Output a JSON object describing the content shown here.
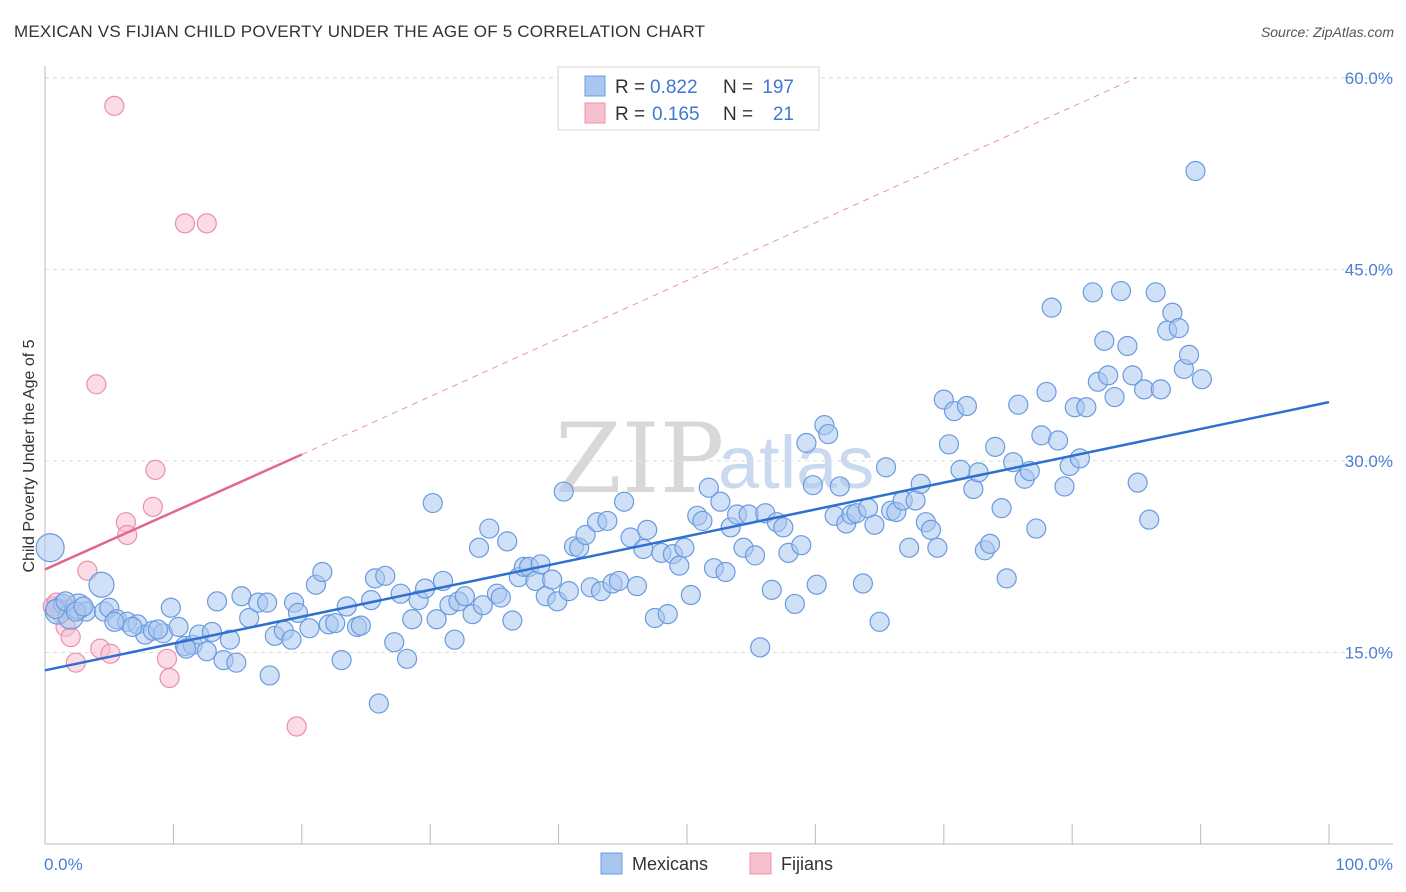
{
  "title": "MEXICAN VS FIJIAN CHILD POVERTY UNDER THE AGE OF 5 CORRELATION CHART",
  "source": "Source: ZipAtlas.com",
  "watermark": {
    "zip": "ZIP",
    "atlas": "atlas"
  },
  "colors": {
    "mexicans_fill": "#a9c6ef",
    "mexicans_stroke": "#6a9be0",
    "mexicans_line": "#2f6fd0",
    "fijians_fill": "#f7c0cf",
    "fijians_stroke": "#ec8fab",
    "fijians_line": "#e06890",
    "grid": "#dddddd",
    "axis_text": "#4a7fd4"
  },
  "legend": {
    "rows": [
      {
        "r_label": "R =",
        "r_value": "0.822",
        "n_label": "N =",
        "n_value": "197"
      },
      {
        "r_label": "R =",
        "r_value": "0.165",
        "n_label": "N =",
        "n_value": "21"
      }
    ]
  },
  "chart_data": {
    "type": "scatter",
    "title": "MEXICAN VS FIJIAN CHILD POVERTY UNDER THE AGE OF 5 CORRELATION CHART",
    "xlabel": "",
    "ylabel": "Child Poverty Under the Age of 5",
    "xlim": [
      0,
      100
    ],
    "ylim": [
      0,
      62
    ],
    "x_tick_labels": [
      "0.0%",
      "100.0%"
    ],
    "y_ticks": [
      15,
      30,
      45,
      60
    ],
    "y_tick_labels": [
      "15.0%",
      "30.0%",
      "45.0%",
      "60.0%"
    ],
    "legend_position": "bottom-center",
    "series": [
      {
        "name": "Mexicans",
        "r": 0.822,
        "n": 197,
        "trend": {
          "x": [
            0,
            100
          ],
          "y": [
            13.6,
            34.6
          ]
        },
        "points": [
          [
            0.4,
            23.2
          ],
          [
            1.0,
            18.2
          ],
          [
            1.4,
            18.8
          ],
          [
            2.0,
            17.8
          ],
          [
            2.6,
            18.6
          ],
          [
            3.2,
            18.2
          ],
          [
            4.4,
            20.3
          ],
          [
            4.6,
            18.2
          ],
          [
            5.0,
            18.5
          ],
          [
            5.6,
            17.6
          ],
          [
            6.4,
            17.4
          ],
          [
            7.2,
            17.2
          ],
          [
            7.8,
            16.4
          ],
          [
            8.4,
            16.7
          ],
          [
            9.2,
            16.5
          ],
          [
            9.8,
            18.5
          ],
          [
            10.4,
            17.0
          ],
          [
            10.9,
            15.5
          ],
          [
            11.5,
            15.6
          ],
          [
            12.0,
            16.4
          ],
          [
            12.6,
            15.1
          ],
          [
            13.0,
            16.6
          ],
          [
            13.4,
            19.0
          ],
          [
            13.9,
            14.4
          ],
          [
            14.4,
            16.0
          ],
          [
            14.9,
            14.2
          ],
          [
            15.3,
            19.4
          ],
          [
            15.9,
            17.7
          ],
          [
            16.6,
            18.9
          ],
          [
            17.3,
            18.9
          ],
          [
            17.5,
            13.2
          ],
          [
            17.9,
            16.3
          ],
          [
            18.6,
            16.7
          ],
          [
            19.2,
            16.0
          ],
          [
            19.4,
            18.9
          ],
          [
            19.7,
            18.1
          ],
          [
            20.6,
            16.9
          ],
          [
            21.1,
            20.3
          ],
          [
            21.6,
            21.3
          ],
          [
            22.1,
            17.2
          ],
          [
            22.6,
            17.3
          ],
          [
            23.1,
            14.4
          ],
          [
            23.5,
            18.6
          ],
          [
            24.3,
            17.0
          ],
          [
            24.6,
            17.1
          ],
          [
            25.4,
            19.1
          ],
          [
            25.7,
            20.8
          ],
          [
            26.0,
            11.0
          ],
          [
            26.5,
            21.0
          ],
          [
            27.2,
            15.8
          ],
          [
            27.7,
            19.6
          ],
          [
            28.2,
            14.5
          ],
          [
            28.6,
            17.6
          ],
          [
            29.1,
            19.1
          ],
          [
            29.6,
            20.0
          ],
          [
            30.2,
            26.7
          ],
          [
            30.5,
            17.6
          ],
          [
            31.0,
            20.6
          ],
          [
            31.5,
            18.7
          ],
          [
            31.9,
            16.0
          ],
          [
            32.2,
            19.0
          ],
          [
            32.7,
            19.4
          ],
          [
            33.3,
            18.0
          ],
          [
            33.8,
            23.2
          ],
          [
            34.1,
            18.7
          ],
          [
            34.6,
            24.7
          ],
          [
            35.2,
            19.6
          ],
          [
            35.5,
            19.3
          ],
          [
            36.0,
            23.7
          ],
          [
            36.4,
            17.5
          ],
          [
            36.9,
            20.9
          ],
          [
            37.3,
            21.7
          ],
          [
            37.7,
            21.7
          ],
          [
            38.2,
            20.6
          ],
          [
            38.6,
            21.9
          ],
          [
            39.0,
            19.4
          ],
          [
            39.5,
            20.7
          ],
          [
            39.9,
            19.0
          ],
          [
            40.4,
            27.6
          ],
          [
            40.8,
            19.8
          ],
          [
            41.2,
            23.3
          ],
          [
            41.6,
            23.2
          ],
          [
            42.1,
            24.2
          ],
          [
            42.5,
            20.1
          ],
          [
            43.0,
            25.2
          ],
          [
            43.3,
            19.8
          ],
          [
            43.8,
            25.3
          ],
          [
            44.2,
            20.4
          ],
          [
            44.7,
            20.6
          ],
          [
            45.1,
            26.8
          ],
          [
            45.6,
            24.0
          ],
          [
            46.1,
            20.2
          ],
          [
            46.6,
            23.1
          ],
          [
            46.9,
            24.6
          ],
          [
            47.5,
            17.7
          ],
          [
            48.0,
            22.8
          ],
          [
            48.5,
            18.0
          ],
          [
            48.9,
            22.7
          ],
          [
            49.4,
            21.8
          ],
          [
            49.8,
            23.2
          ],
          [
            50.3,
            19.5
          ],
          [
            50.8,
            25.7
          ],
          [
            51.2,
            25.3
          ],
          [
            51.7,
            27.9
          ],
          [
            52.1,
            21.6
          ],
          [
            52.6,
            26.8
          ],
          [
            53.0,
            21.3
          ],
          [
            53.4,
            24.8
          ],
          [
            53.9,
            25.8
          ],
          [
            54.4,
            23.2
          ],
          [
            54.8,
            25.8
          ],
          [
            55.3,
            22.6
          ],
          [
            55.7,
            15.4
          ],
          [
            56.1,
            25.9
          ],
          [
            56.6,
            19.9
          ],
          [
            57.0,
            25.2
          ],
          [
            57.5,
            24.8
          ],
          [
            57.9,
            22.8
          ],
          [
            58.4,
            18.8
          ],
          [
            58.9,
            23.4
          ],
          [
            59.3,
            31.4
          ],
          [
            59.8,
            28.1
          ],
          [
            60.1,
            20.3
          ],
          [
            60.7,
            32.8
          ],
          [
            61.0,
            32.1
          ],
          [
            61.5,
            25.7
          ],
          [
            61.9,
            28.0
          ],
          [
            62.4,
            25.1
          ],
          [
            62.8,
            25.8
          ],
          [
            63.2,
            25.9
          ],
          [
            63.7,
            20.4
          ],
          [
            64.1,
            26.3
          ],
          [
            64.6,
            25.0
          ],
          [
            65.0,
            17.4
          ],
          [
            65.5,
            29.5
          ],
          [
            65.9,
            26.1
          ],
          [
            66.3,
            26.0
          ],
          [
            66.8,
            26.9
          ],
          [
            67.3,
            23.2
          ],
          [
            67.8,
            26.9
          ],
          [
            68.2,
            28.2
          ],
          [
            68.6,
            25.2
          ],
          [
            69.0,
            24.6
          ],
          [
            69.5,
            23.2
          ],
          [
            70.0,
            34.8
          ],
          [
            70.4,
            31.3
          ],
          [
            70.8,
            33.9
          ],
          [
            71.3,
            29.3
          ],
          [
            71.8,
            34.3
          ],
          [
            72.3,
            27.8
          ],
          [
            72.7,
            29.1
          ],
          [
            73.2,
            23.0
          ],
          [
            73.6,
            23.5
          ],
          [
            74.0,
            31.1
          ],
          [
            74.5,
            26.3
          ],
          [
            74.9,
            20.8
          ],
          [
            75.4,
            29.9
          ],
          [
            75.8,
            34.4
          ],
          [
            76.3,
            28.6
          ],
          [
            76.7,
            29.2
          ],
          [
            77.2,
            24.7
          ],
          [
            77.6,
            32.0
          ],
          [
            78.0,
            35.4
          ],
          [
            78.4,
            42.0
          ],
          [
            78.9,
            31.6
          ],
          [
            79.4,
            28.0
          ],
          [
            79.8,
            29.6
          ],
          [
            80.2,
            34.2
          ],
          [
            80.6,
            30.2
          ],
          [
            81.1,
            34.2
          ],
          [
            81.6,
            43.2
          ],
          [
            82.0,
            36.2
          ],
          [
            82.5,
            39.4
          ],
          [
            82.8,
            36.7
          ],
          [
            83.3,
            35.0
          ],
          [
            83.8,
            43.3
          ],
          [
            84.3,
            39.0
          ],
          [
            84.7,
            36.7
          ],
          [
            85.1,
            28.3
          ],
          [
            85.6,
            35.6
          ],
          [
            86.0,
            25.4
          ],
          [
            86.5,
            43.2
          ],
          [
            86.9,
            35.6
          ],
          [
            87.4,
            40.2
          ],
          [
            87.8,
            41.6
          ],
          [
            88.3,
            40.4
          ],
          [
            88.7,
            37.2
          ],
          [
            89.1,
            38.3
          ],
          [
            89.6,
            52.7
          ],
          [
            90.1,
            36.4
          ],
          [
            0.8,
            18.4
          ],
          [
            1.6,
            19.0
          ],
          [
            2.4,
            18.2
          ],
          [
            3.0,
            18.6
          ],
          [
            5.4,
            17.4
          ],
          [
            6.8,
            17.0
          ],
          [
            8.8,
            16.8
          ],
          [
            11.0,
            15.3
          ]
        ]
      },
      {
        "name": "Fijians",
        "r": 0.165,
        "n": 21,
        "trend": {
          "x": [
            0,
            20
          ],
          "y": [
            21.5,
            30.5
          ]
        },
        "trend_extended": {
          "x": [
            20,
            85
          ],
          "y": [
            30.5,
            60.0
          ]
        },
        "points": [
          [
            0.6,
            18.6
          ],
          [
            1.2,
            18.1
          ],
          [
            1.6,
            17.0
          ],
          [
            2.0,
            16.2
          ],
          [
            2.4,
            14.2
          ],
          [
            3.3,
            21.4
          ],
          [
            4.0,
            36.0
          ],
          [
            4.3,
            15.3
          ],
          [
            5.1,
            14.9
          ],
          [
            5.4,
            57.8
          ],
          [
            6.3,
            25.2
          ],
          [
            6.4,
            24.2
          ],
          [
            8.4,
            26.4
          ],
          [
            8.6,
            29.3
          ],
          [
            9.5,
            14.5
          ],
          [
            9.7,
            13.0
          ],
          [
            10.9,
            48.6
          ],
          [
            12.6,
            48.6
          ],
          [
            19.6,
            9.2
          ],
          [
            0.9,
            18.9
          ],
          [
            1.9,
            18.4
          ]
        ]
      }
    ]
  }
}
